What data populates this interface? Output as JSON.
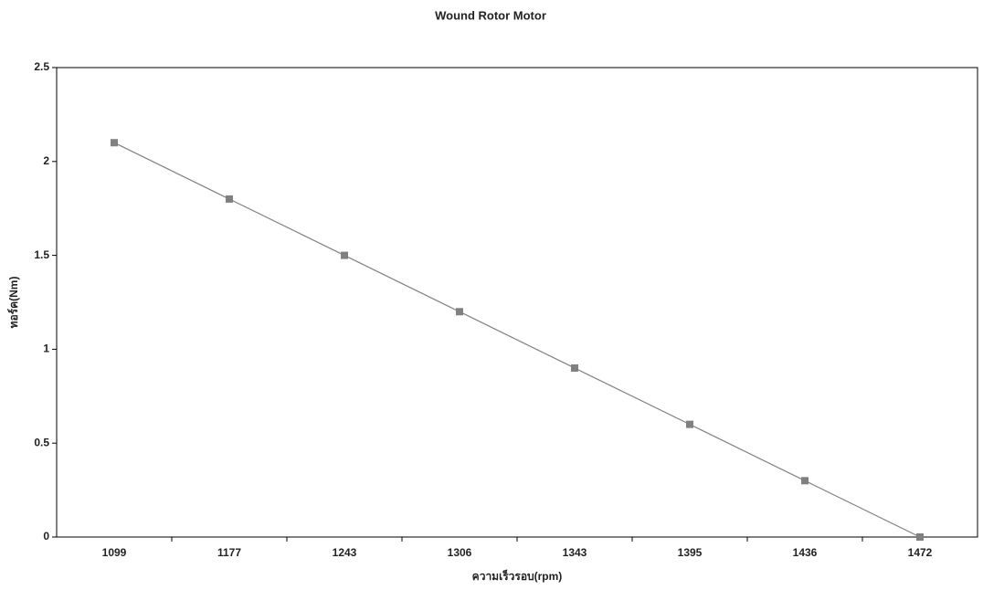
{
  "chart_data": {
    "type": "line",
    "title": "Wound Rotor Motor",
    "x_label": "ความเร็วรอบ(rpm)",
    "y_label": "ทอร์ค(Nm)",
    "categories": [
      "1099",
      "1177",
      "1243",
      "1306",
      "1343",
      "1395",
      "1436",
      "1472"
    ],
    "values": [
      2.1,
      1.8,
      1.5,
      1.2,
      0.9,
      0.6,
      0.3,
      0
    ],
    "color": "#808080",
    "ylim": [
      0,
      2.5
    ],
    "yticks": [
      0,
      0.5,
      1,
      1.5,
      2,
      2.5
    ]
  }
}
